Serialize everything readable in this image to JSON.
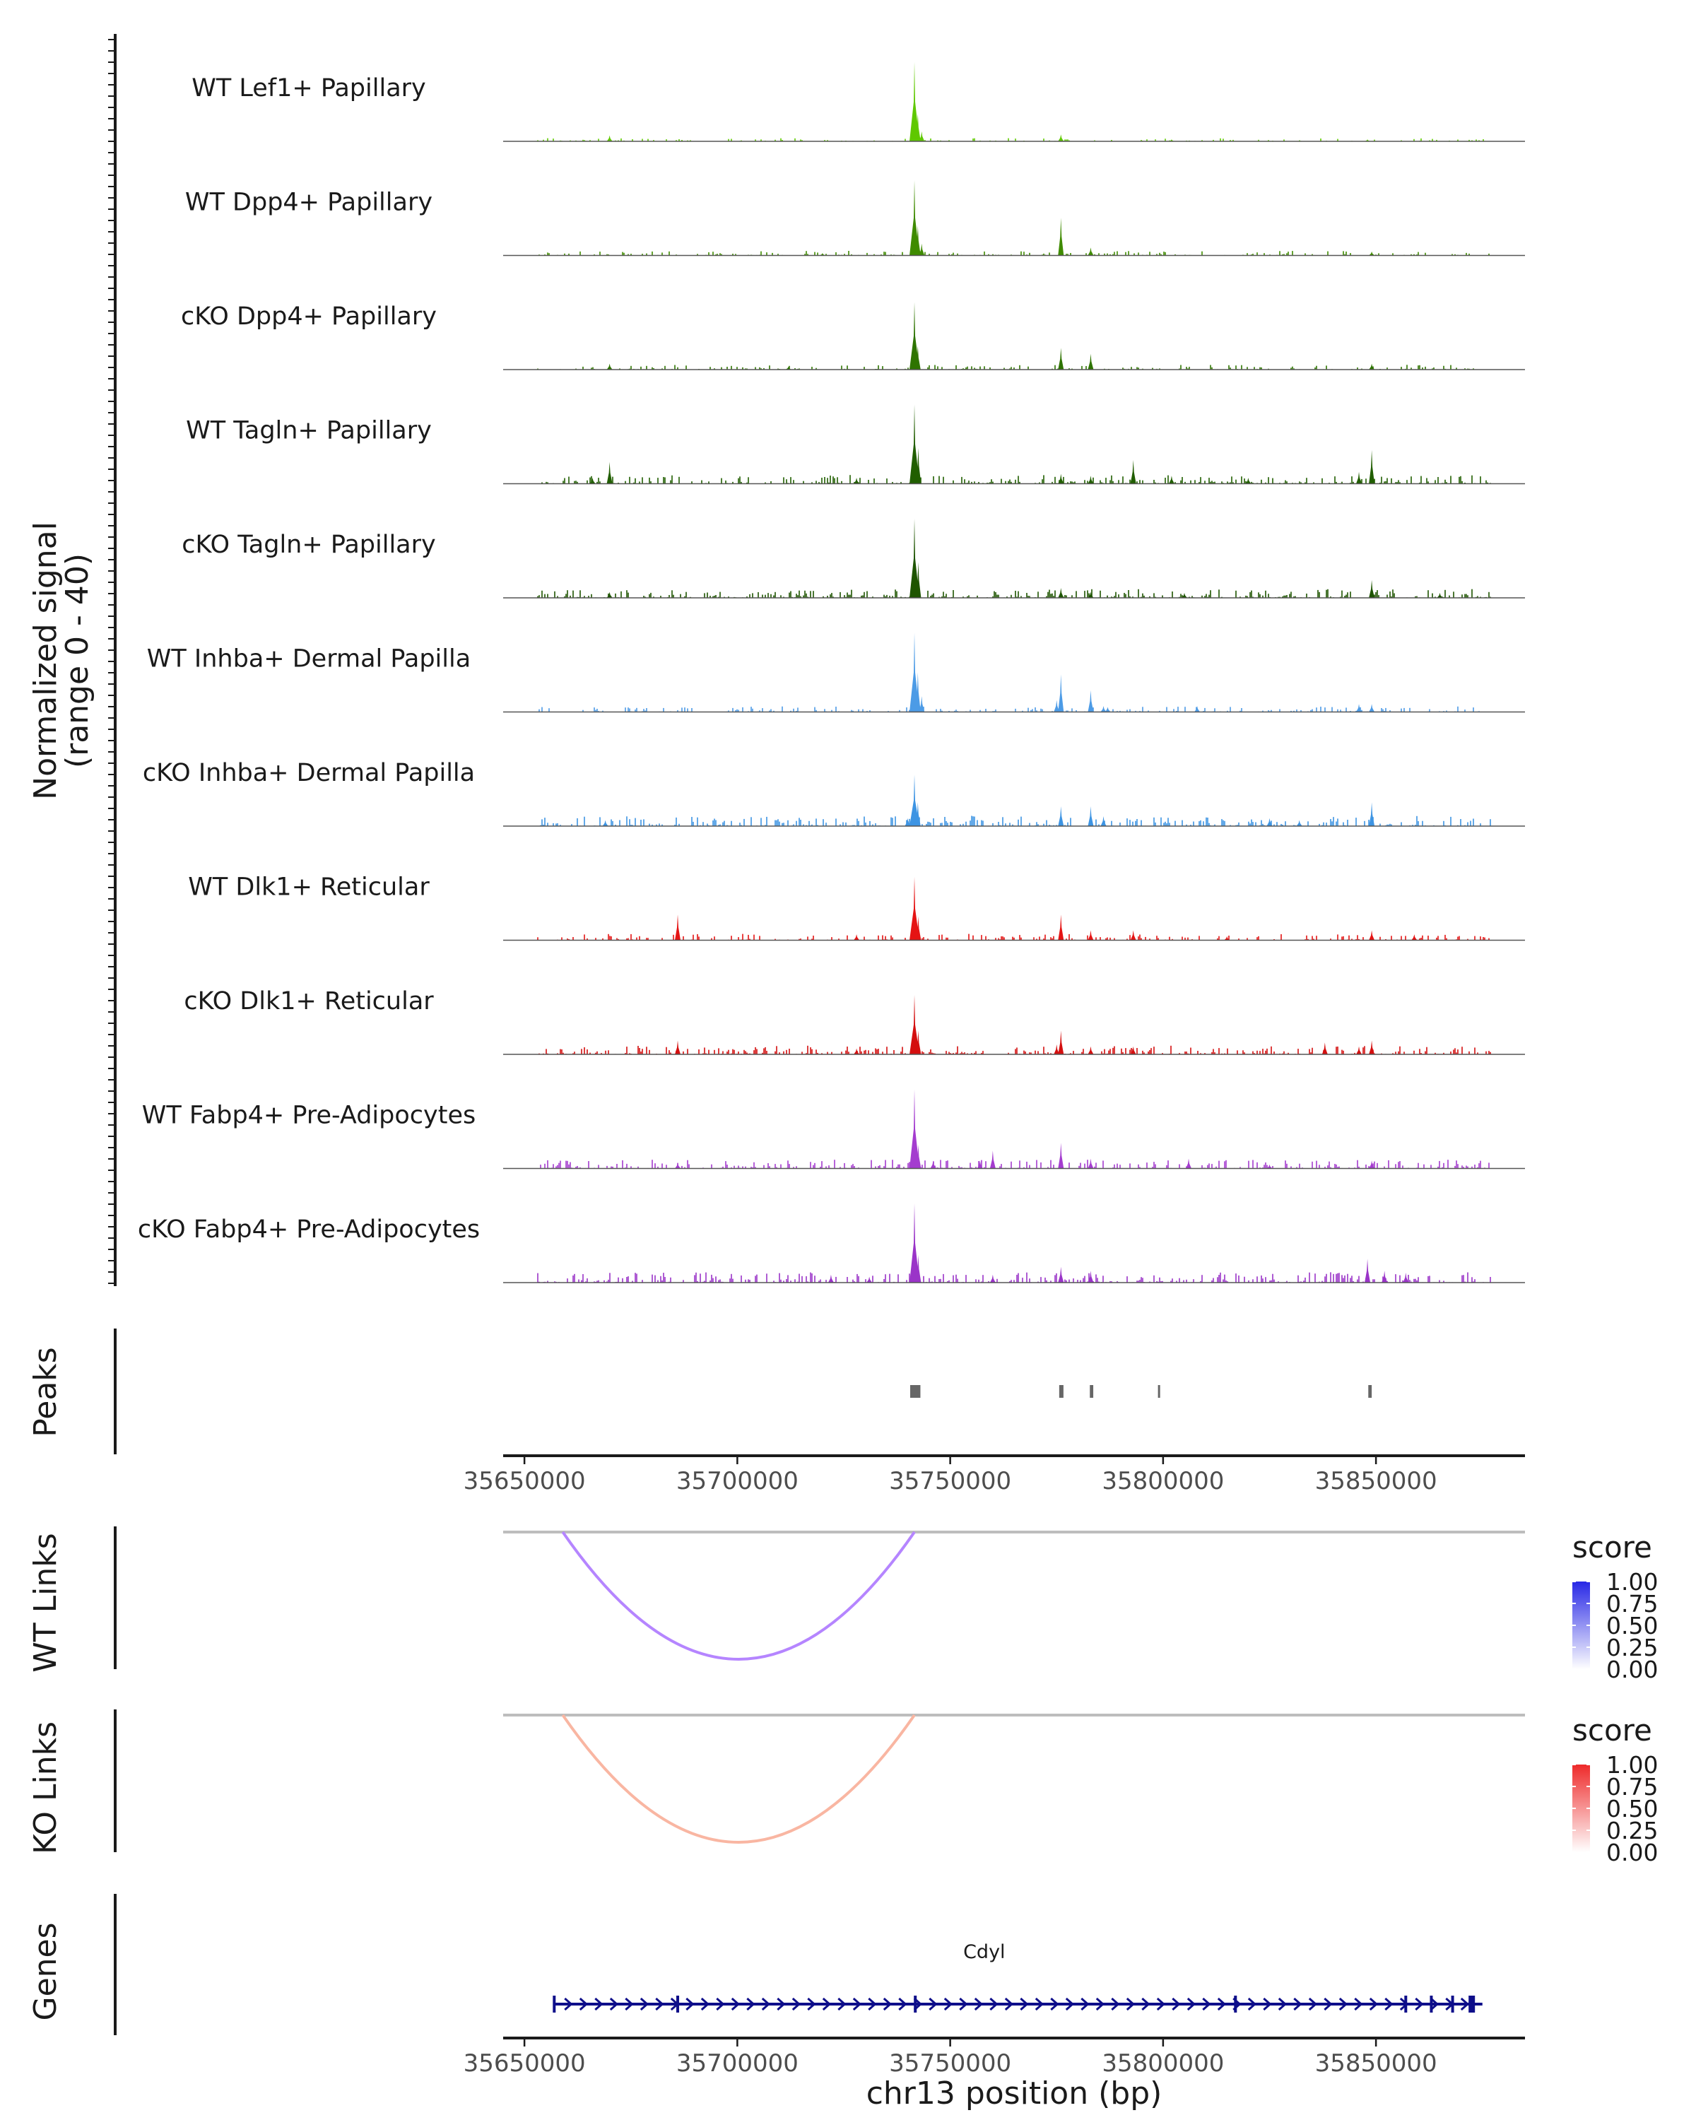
{
  "chart_data": {
    "type": "coverage",
    "xlabel": "chr13 position (bp)",
    "xlim": [
      35645000,
      35885000
    ],
    "x_ticks": [
      35650000,
      35700000,
      35750000,
      35800000,
      35850000
    ],
    "coverage": {
      "ylabel_line1": "Normalized signal",
      "ylabel_line2": "(range 0 - 40)",
      "ylim": [
        0,
        40
      ],
      "tracks": [
        {
          "name": "WT Lef1+ Papillary",
          "color": "#5fc800",
          "peaks": [
            [
              35741600,
              40
            ],
            [
              35742400,
              14
            ],
            [
              35743300,
              5
            ],
            [
              35670000,
              3
            ],
            [
              35776000,
              3.5
            ],
            [
              35802000,
              1
            ],
            [
              35848000,
              1
            ]
          ],
          "noise": 0.8,
          "density": 0.35
        },
        {
          "name": "WT Dpp4+ Papillary",
          "color": "#3f8b00",
          "peaks": [
            [
              35741600,
              38
            ],
            [
              35742400,
              15
            ],
            [
              35743300,
              6
            ],
            [
              35776000,
              19
            ],
            [
              35783000,
              4
            ],
            [
              35849000,
              2
            ],
            [
              35720000,
              1.2
            ]
          ],
          "noise": 1.2,
          "density": 0.45
        },
        {
          "name": "cKO Dpp4+ Papillary",
          "color": "#2e7400",
          "peaks": [
            [
              35741600,
              34
            ],
            [
              35742400,
              12
            ],
            [
              35776000,
              11
            ],
            [
              35783000,
              8
            ],
            [
              35849000,
              3
            ],
            [
              35670000,
              3
            ],
            [
              35712000,
              1.5
            ]
          ],
          "noise": 1.2,
          "density": 0.45
        },
        {
          "name": "WT Tagln+ Papillary",
          "color": "#215e00",
          "peaks": [
            [
              35741600,
              40
            ],
            [
              35742500,
              18
            ],
            [
              35670000,
              11
            ],
            [
              35793000,
              12
            ],
            [
              35849000,
              17
            ],
            [
              35846000,
              6
            ],
            [
              35776000,
              5
            ],
            [
              35783000,
              4
            ],
            [
              35728000,
              3
            ],
            [
              35802000,
              4
            ],
            [
              35820000,
              3
            ],
            [
              35666000,
              3
            ]
          ],
          "noise": 2.2,
          "density": 0.6
        },
        {
          "name": "cKO Tagln+ Papillary",
          "color": "#1e5500",
          "peaks": [
            [
              35741600,
              40
            ],
            [
              35742500,
              18
            ],
            [
              35849000,
              9
            ],
            [
              35776000,
              5
            ],
            [
              35783000,
              3
            ],
            [
              35670000,
              3
            ],
            [
              35865000,
              2.5
            ],
            [
              35805000,
              2.5
            ]
          ],
          "noise": 2.2,
          "density": 0.65
        },
        {
          "name": "WT Inhba+ Dermal Papilla",
          "color": "#4c9be6",
          "peaks": [
            [
              35741600,
              40
            ],
            [
              35742400,
              20
            ],
            [
              35743300,
              8
            ],
            [
              35776000,
              19
            ],
            [
              35775000,
              6
            ],
            [
              35783000,
              11
            ],
            [
              35849000,
              4
            ],
            [
              35846000,
              4
            ],
            [
              35786000,
              3
            ],
            [
              35808000,
              3
            ],
            [
              35787000,
              2.5
            ]
          ],
          "noise": 1.4,
          "density": 0.45
        },
        {
          "name": "cKO Inhba+ Dermal Papilla",
          "color": "#3d94e3",
          "peaks": [
            [
              35741600,
              26
            ],
            [
              35742400,
              12
            ],
            [
              35776000,
              10
            ],
            [
              35783000,
              10
            ],
            [
              35849000,
              12
            ],
            [
              35786000,
              5
            ],
            [
              35669000,
              3
            ],
            [
              35740000,
              4
            ],
            [
              35825000,
              4
            ],
            [
              35832000,
              3
            ]
          ],
          "noise": 2.6,
          "density": 0.6
        },
        {
          "name": "WT Dlk1+ Reticular",
          "color": "#e51414",
          "peaks": [
            [
              35741600,
              32
            ],
            [
              35742500,
              12
            ],
            [
              35686000,
              13
            ],
            [
              35776000,
              13
            ],
            [
              35783000,
              5
            ],
            [
              35793000,
              5
            ],
            [
              35849000,
              5
            ],
            [
              35859000,
              3
            ],
            [
              35815000,
              2
            ],
            [
              35728000,
              3
            ]
          ],
          "noise": 1.6,
          "density": 0.5
        },
        {
          "name": "cKO Dlk1+ Reticular",
          "color": "#d40f0f",
          "peaks": [
            [
              35741600,
              30
            ],
            [
              35742500,
              12
            ],
            [
              35686000,
              7
            ],
            [
              35776000,
              12
            ],
            [
              35775000,
              5
            ],
            [
              35783000,
              4
            ],
            [
              35849000,
              7
            ],
            [
              35846000,
              4
            ],
            [
              35838000,
              6
            ],
            [
              35793000,
              4
            ],
            [
              35728000,
              3
            ]
          ],
          "noise": 2.2,
          "density": 0.6
        },
        {
          "name": "WT Fabp4+ Pre-Adipocytes",
          "color": "#a43ccf",
          "peaks": [
            [
              35741600,
              40
            ],
            [
              35742500,
              12
            ],
            [
              35760000,
              9
            ],
            [
              35776000,
              13
            ],
            [
              35783000,
              5
            ],
            [
              35806000,
              5
            ],
            [
              35849000,
              4
            ],
            [
              35746000,
              4
            ],
            [
              35757000,
              4
            ],
            [
              35686000,
              3
            ],
            [
              35825000,
              2
            ]
          ],
          "noise": 2.2,
          "density": 0.6
        },
        {
          "name": "cKO Fabp4+ Pre-Adipocytes",
          "color": "#9a34c8",
          "peaks": [
            [
              35741600,
              40
            ],
            [
              35742500,
              14
            ],
            [
              35848000,
              12
            ],
            [
              35776000,
              8
            ],
            [
              35783000,
              6
            ],
            [
              35760000,
              4
            ],
            [
              35731000,
              3
            ],
            [
              35852000,
              6
            ],
            [
              35857000,
              5
            ],
            [
              35722000,
              4
            ]
          ],
          "noise": 2.6,
          "density": 0.7
        }
      ]
    },
    "peaks_track": {
      "label": "Peaks",
      "color": "#666666",
      "regions": [
        [
          35740600,
          35743000
        ],
        [
          35775600,
          35776600
        ],
        [
          35782800,
          35783600
        ],
        [
          35798800,
          35799300
        ],
        [
          35848200,
          35849000
        ]
      ]
    },
    "link_tracks": [
      {
        "label": "WT Links",
        "color": "#b585ff",
        "links": [
          [
            35659000,
            35741600,
            0.55
          ]
        ],
        "legend": {
          "title": "score",
          "ticks": [
            "1.00",
            "0.75",
            "0.50",
            "0.25",
            "0.00"
          ],
          "low": "#ffffff",
          "high": "#2828e6"
        }
      },
      {
        "label": "KO Links",
        "color": "#f9b6a2",
        "links": [
          [
            35659000,
            35741600,
            0.3
          ]
        ],
        "legend": {
          "title": "score",
          "ticks": [
            "1.00",
            "0.75",
            "0.50",
            "0.25",
            "0.00"
          ],
          "low": "#ffffff",
          "high": "#ee2a2a"
        }
      }
    ],
    "genes_track": {
      "label": "Genes",
      "color": "#0e0e8a",
      "genes": [
        {
          "name": "Cdyl",
          "start": 35657000,
          "end": 35875000,
          "strand": "+",
          "exons": [
            35657000,
            35686000,
            35741800,
            35817000,
            35857000,
            35863000,
            35868000,
            35872500
          ]
        }
      ]
    }
  }
}
